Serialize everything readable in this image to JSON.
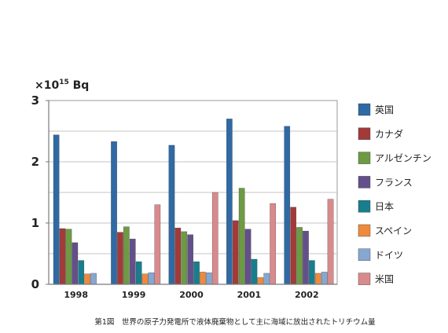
{
  "chart_data": {
    "type": "bar",
    "unit_prefix": "×10",
    "unit_exponent": "15",
    "unit_suffix": " Bq",
    "categories": [
      "1998",
      "1999",
      "2000",
      "2001",
      "2002"
    ],
    "ylim": [
      0,
      3
    ],
    "yticks": [
      "0",
      "1",
      "2",
      "3"
    ],
    "grid": true,
    "legend_position": "right",
    "series": [
      {
        "name": "英国",
        "color": "#2f6aa5",
        "values": [
          2.44,
          2.33,
          2.27,
          2.7,
          2.58
        ]
      },
      {
        "name": "カナダ",
        "color": "#a33a3a",
        "values": [
          0.91,
          0.85,
          0.92,
          1.04,
          1.26
        ]
      },
      {
        "name": "アルゼンチン",
        "color": "#6d9a43",
        "values": [
          0.9,
          0.94,
          0.86,
          1.57,
          0.93
        ]
      },
      {
        "name": "フランス",
        "color": "#63508a",
        "values": [
          0.68,
          0.74,
          0.81,
          0.9,
          0.87
        ]
      },
      {
        "name": "日本",
        "color": "#177e8e",
        "values": [
          0.39,
          0.37,
          0.37,
          0.41,
          0.39
        ]
      },
      {
        "name": "スペイン",
        "color": "#ef8a3c",
        "values": [
          0.17,
          0.17,
          0.2,
          0.11,
          0.18
        ]
      },
      {
        "name": "ドイツ",
        "color": "#86a7d2",
        "values": [
          0.18,
          0.19,
          0.19,
          0.18,
          0.2
        ]
      },
      {
        "name": "米国",
        "color": "#d98a8c",
        "values": [
          0.0,
          1.3,
          1.5,
          1.32,
          1.39
        ]
      }
    ],
    "caption": "第1図　世界の原子力発電所で液体廃棄物として主に海域に放出されたトリチウム量"
  }
}
